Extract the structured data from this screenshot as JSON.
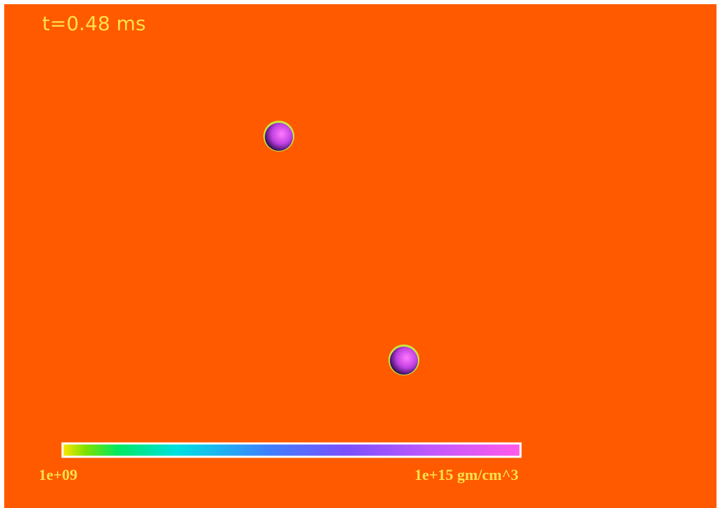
{
  "time_label": "t=0.48 ms",
  "colorbar": {
    "min_label": "1e+09",
    "max_label": "1e+15 gm/cm^3"
  }
}
